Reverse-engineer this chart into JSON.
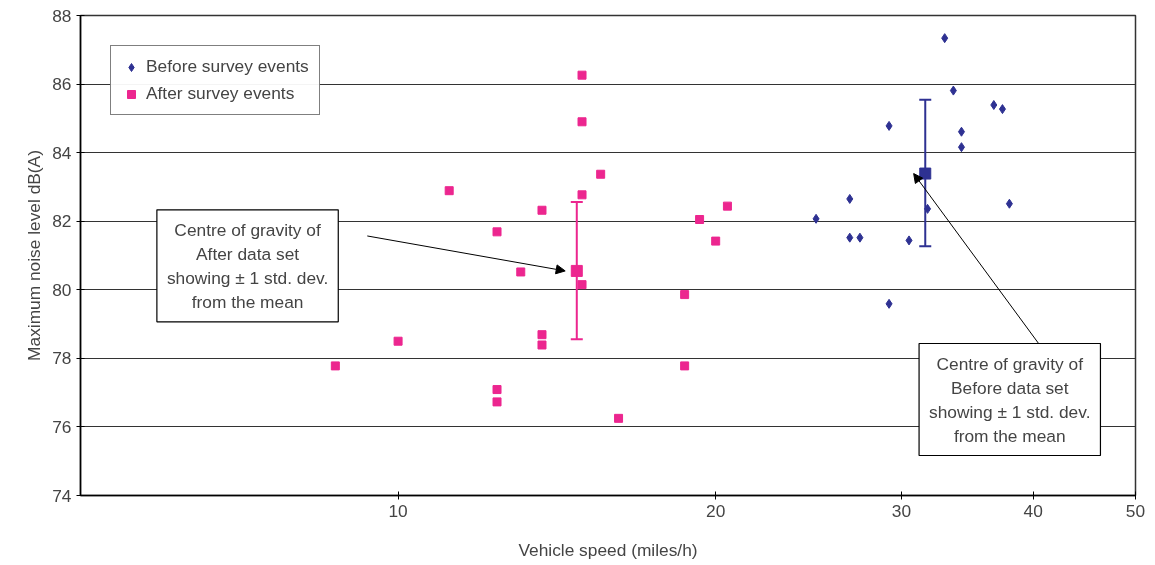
{
  "chart_data": {
    "type": "scatter",
    "xlabel": "Vehicle speed (miles/h)",
    "ylabel": "Maximum noise level dB(A)",
    "log": "x",
    "xlim": [
      5,
      50
    ],
    "xticks": [
      10,
      20,
      30,
      40,
      50
    ],
    "ylim": [
      74,
      88
    ],
    "yticks": [
      74,
      76,
      78,
      80,
      82,
      84,
      86,
      88
    ],
    "grid": "y",
    "legend": "top left",
    "series": [
      {
        "name": "Before survey events",
        "color": "#2e3192",
        "marker": "diamond",
        "x": [
          32.97,
          33.6,
          36.7,
          37.4,
          29.2,
          34.2,
          34.2,
          26.8,
          37.97,
          31.76,
          24.9,
          26.8,
          27.4,
          30.5,
          29.2
        ],
        "values": [
          87.34,
          85.81,
          85.39,
          85.27,
          84.78,
          84.61,
          84.16,
          82.65,
          82.51,
          82.36,
          82.07,
          81.52,
          81.52,
          81.44,
          79.59
        ]
      },
      {
        "name": "After survey events",
        "color": "#ec268f",
        "marker": "square",
        "x": [
          8.72,
          10.0,
          11.18,
          12.41,
          12.41,
          12.41,
          13.07,
          13.69,
          13.69,
          13.69,
          14.94,
          14.94,
          14.94,
          14.94,
          15.56,
          16.18,
          18.69,
          18.69,
          19.31,
          20.0,
          20.52
        ],
        "values": [
          77.78,
          78.5,
          82.89,
          81.69,
          77.09,
          76.73,
          80.52,
          82.32,
          78.69,
          78.39,
          80.15,
          86.26,
          84.9,
          82.77,
          83.37,
          76.25,
          79.86,
          77.78,
          82.05,
          81.42,
          82.44
        ]
      },
      {
        "color": "#2e3192",
        "marker": "square",
        "x": [
          31.6
        ],
        "values": [
          83.39
        ],
        "errors": [
          [
            81.27,
            85.54
          ]
        ]
      },
      {
        "color": "#ec268f",
        "marker": "square",
        "x": [
          14.77
        ],
        "values": [
          80.55
        ],
        "errors": [
          [
            78.56,
            82.56
          ]
        ]
      }
    ],
    "annotations": [
      "Centre of gravity of\nAfter data set\nshowing ± 1 std. dev.\nfrom the mean",
      "Centre of gravity of\nBefore data set\nshowing ± 1 std. dev.\nfrom the mean"
    ]
  }
}
